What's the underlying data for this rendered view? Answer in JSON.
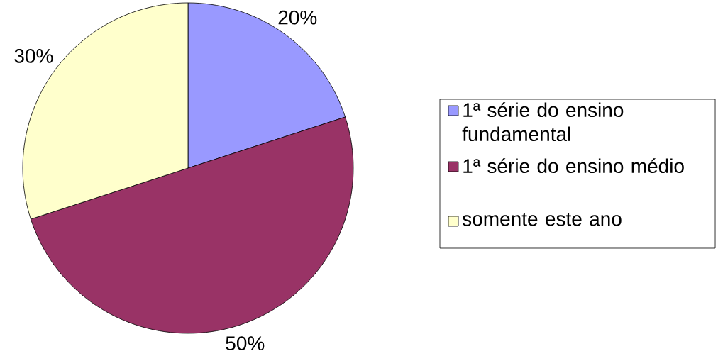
{
  "chart_data": {
    "type": "pie",
    "categories": [
      "1ª série do ensino fundamental",
      "1ª série do ensino médio",
      "somente este ano"
    ],
    "values": [
      20,
      50,
      30
    ],
    "colors": [
      "#9999ff",
      "#993366",
      "#ffffcc"
    ],
    "value_labels": [
      "20%",
      "50%",
      "30%"
    ],
    "legend": "right"
  }
}
